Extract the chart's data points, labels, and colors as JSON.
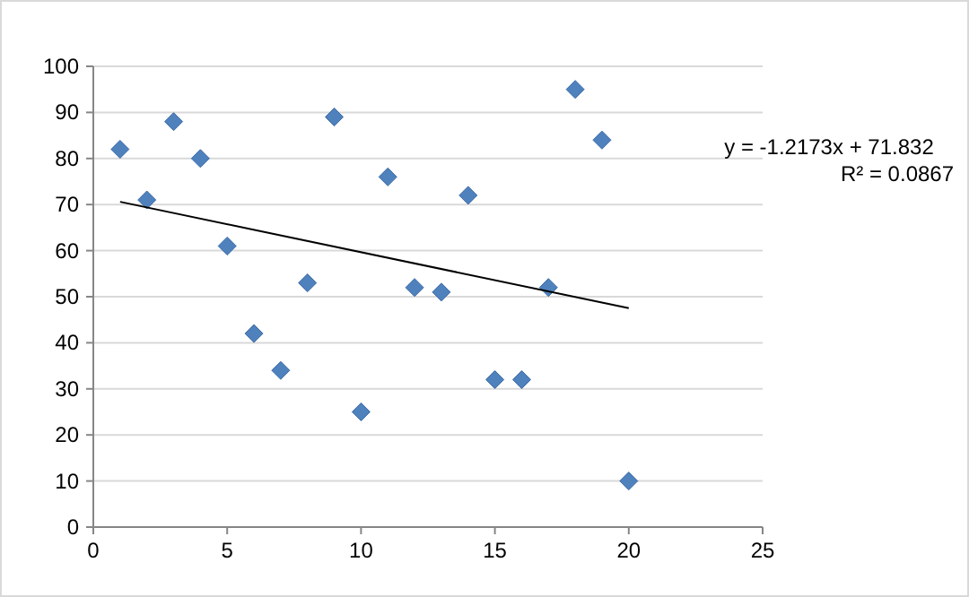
{
  "chart_data": {
    "type": "scatter",
    "x": [
      1,
      2,
      3,
      4,
      5,
      6,
      7,
      8,
      9,
      10,
      11,
      12,
      13,
      14,
      15,
      16,
      17,
      18,
      19,
      20
    ],
    "series": [
      {
        "color": "#4f81bd",
        "marker": "diamond",
        "values": [
          82,
          71,
          88,
          80,
          61,
          42,
          34,
          53,
          89,
          25,
          76,
          52,
          51,
          72,
          32,
          32,
          52,
          95,
          84,
          10
        ]
      },
      {
        "type": "line",
        "color": "#000000",
        "marker": "none",
        "x": [
          1,
          20
        ],
        "values": [
          70.6,
          47.5
        ]
      }
    ],
    "xlim": [
      0,
      25
    ],
    "xticks": [
      0,
      5,
      10,
      15,
      20,
      25
    ],
    "ylim": [
      0,
      100
    ],
    "yticks": [
      0,
      10,
      20,
      30,
      40,
      50,
      60,
      70,
      80,
      90,
      100
    ],
    "grid": "y",
    "annotations": [
      "y = -1.2173x + 71.832",
      "R² = 0.0867"
    ]
  }
}
